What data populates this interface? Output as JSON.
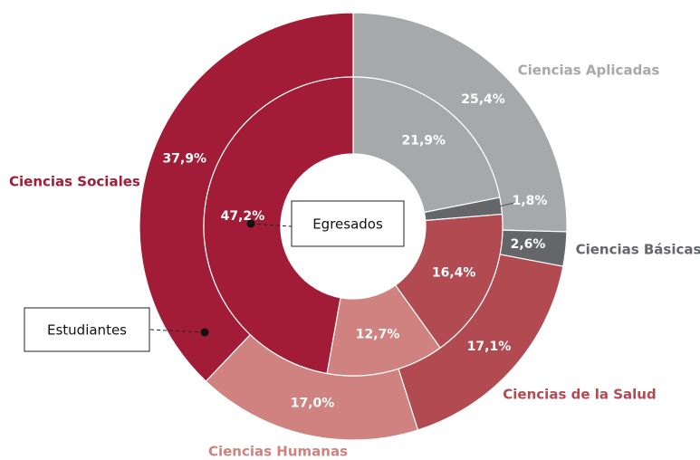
{
  "chart_data": {
    "type": "donut",
    "categories": [
      "Ciencias Aplicadas",
      "Ciencias Básicas",
      "Ciencias de la Salud",
      "Ciencias Humanas",
      "Ciencias Sociales"
    ],
    "colors": [
      "#a7a8aa",
      "#65666a",
      "#b14b51",
      "#cf827f",
      "#a31c37"
    ],
    "series": [
      {
        "name": "Estudiantes",
        "values": [
          25.4,
          2.6,
          17.1,
          17.0,
          37.9
        ],
        "value_labels": [
          "25,4%",
          "2,6%",
          "17,1%",
          "17,0%",
          "37,9%"
        ]
      },
      {
        "name": "Egresados",
        "values": [
          21.9,
          1.8,
          16.4,
          12.7,
          47.2
        ],
        "value_labels": [
          "21,9%",
          "1,8%",
          "16,4%",
          "12,7%",
          "47,2%"
        ]
      }
    ]
  }
}
